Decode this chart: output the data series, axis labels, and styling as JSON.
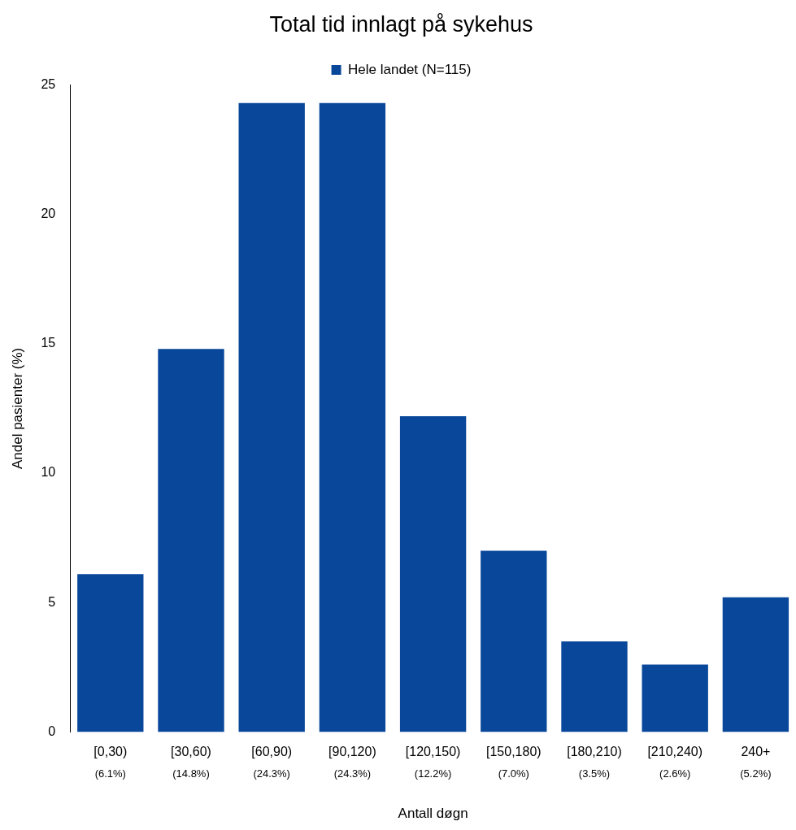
{
  "chart_data": {
    "type": "bar",
    "title": "Total tid innlagt på sykehus",
    "xlabel": "Antall døgn",
    "ylabel": "Andel pasienter (%)",
    "categories": [
      "[0,30)",
      "[30,60)",
      "[60,90)",
      "[90,120)",
      "[120,150)",
      "[150,180)",
      "[180,210)",
      "[210,240)",
      "240+"
    ],
    "series": [
      {
        "name": "Hele landet (N=115)",
        "color": "#08479a",
        "values": [
          6.1,
          14.8,
          24.3,
          24.3,
          12.2,
          7.0,
          3.5,
          2.6,
          5.2
        ],
        "value_labels": [
          "(6.1%)",
          "(14.8%)",
          "(24.3%)",
          "(24.3%)",
          "(12.2%)",
          "(7.0%)",
          "(3.5%)",
          "(2.6%)",
          "(5.2%)"
        ]
      }
    ],
    "ylim": [
      0,
      25
    ],
    "yticks": [
      0,
      5,
      10,
      15,
      20,
      25
    ],
    "grid": false,
    "legend": "top"
  }
}
